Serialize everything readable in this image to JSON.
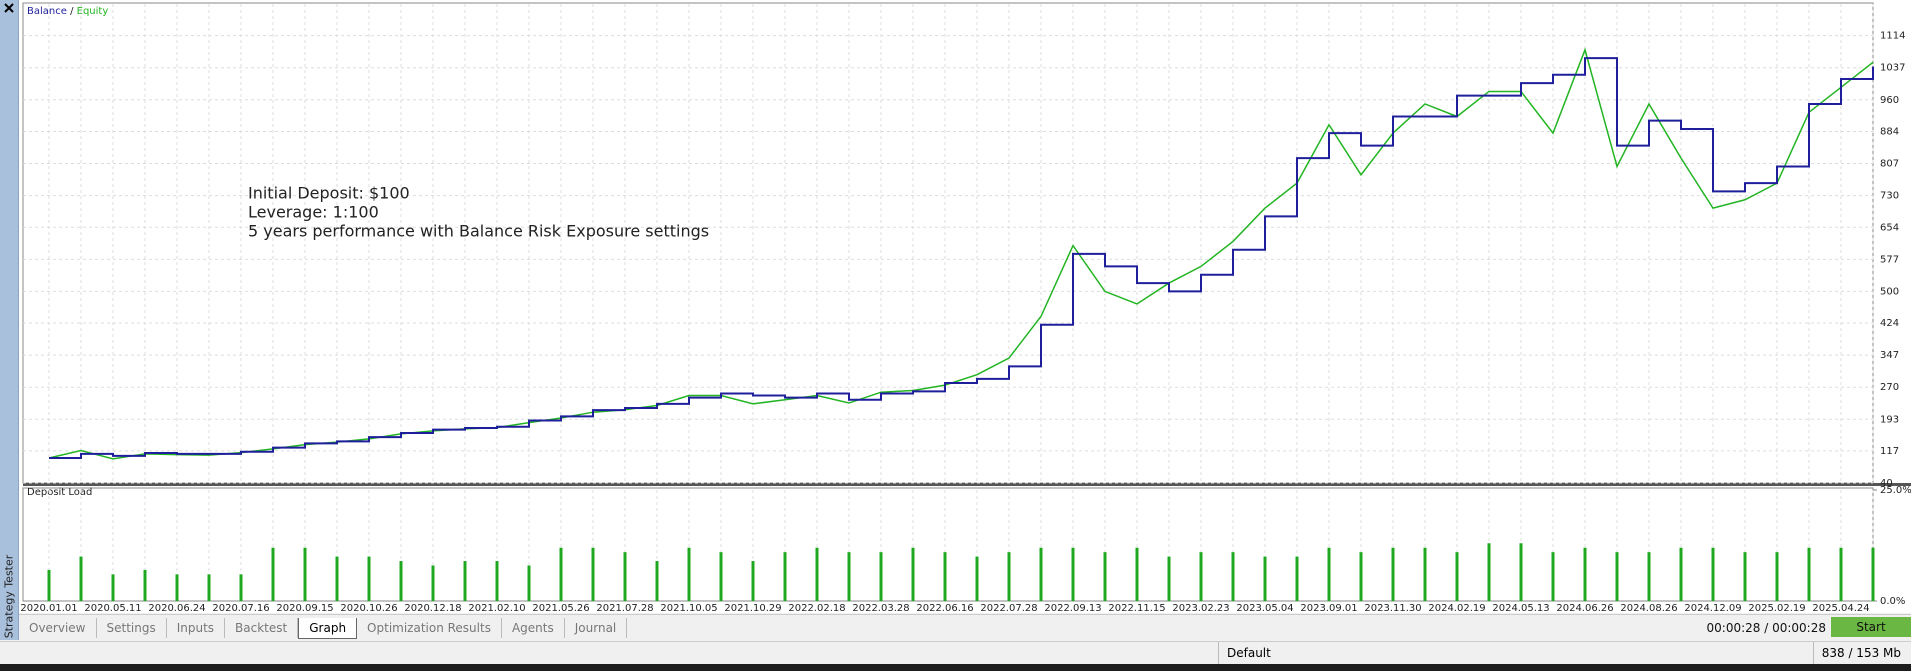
{
  "chart_data": [
    {
      "type": "line",
      "annotations": [
        "Initial Deposit: $100",
        "Leverage: 1:100",
        "5 years performance with Balance Risk Exposure settings"
      ],
      "annotation_color": "#d62a1e",
      "legend_separator": "/",
      "ylim": [
        40,
        1190
      ],
      "yticks": [
        40,
        117,
        193,
        270,
        347,
        424,
        500,
        577,
        654,
        730,
        807,
        884,
        960,
        1037,
        1114
      ],
      "grid": true,
      "series": [
        {
          "name": "Balance",
          "color": "#1f1f9c",
          "values": [
            100,
            110,
            105,
            112,
            110,
            110,
            115,
            125,
            135,
            140,
            150,
            160,
            168,
            172,
            175,
            190,
            200,
            215,
            220,
            230,
            245,
            255,
            250,
            245,
            255,
            240,
            255,
            260,
            280,
            290,
            320,
            420,
            590,
            560,
            520,
            500,
            540,
            600,
            680,
            820,
            880,
            850,
            920,
            920,
            970,
            970,
            1000,
            1020,
            1060,
            850,
            910,
            890,
            740,
            760,
            800,
            950,
            1010,
            1040
          ]
        },
        {
          "name": "Equity",
          "color": "#22b422",
          "values": [
            100,
            118,
            98,
            110,
            108,
            107,
            113,
            122,
            132,
            138,
            146,
            158,
            165,
            170,
            173,
            185,
            196,
            210,
            216,
            226,
            250,
            250,
            230,
            240,
            250,
            232,
            258,
            262,
            275,
            300,
            340,
            440,
            610,
            500,
            470,
            520,
            560,
            620,
            700,
            760,
            900,
            780,
            880,
            950,
            920,
            980,
            980,
            880,
            1080,
            800,
            950,
            820,
            700,
            720,
            760,
            930,
            990,
            1050
          ]
        }
      ]
    },
    {
      "type": "bar",
      "title": "Deposit Load",
      "color": "#1fa81f",
      "categories": [
        "2020.01.01",
        null,
        "2020.05.11",
        null,
        "2020.06.24",
        null,
        "2020.07.16",
        null,
        "2020.09.15",
        null,
        "2020.10.26",
        null,
        "2020.12.18",
        null,
        "2021.02.10",
        null,
        "2021.05.26",
        null,
        "2021.07.28",
        null,
        "2021.10.05",
        null,
        "2021.10.29",
        null,
        "2022.02.18",
        null,
        "2022.03.28",
        null,
        "2022.06.16",
        null,
        "2022.07.28",
        null,
        "2022.09.13",
        null,
        "2022.11.15",
        null,
        "2023.02.23",
        null,
        "2023.05.04",
        null,
        "2023.09.01",
        null,
        "2023.11.30",
        null,
        "2024.02.19",
        null,
        "2024.05.13",
        null,
        "2024.06.26",
        null,
        "2024.08.26",
        null,
        "2024.12.09",
        null,
        "2025.02.19",
        null,
        "2025.04.24",
        null
      ],
      "values": [
        7,
        10,
        6,
        7,
        6,
        6,
        6,
        12,
        12,
        10,
        10,
        9,
        8,
        9,
        9,
        8,
        12,
        12,
        11,
        9,
        12,
        11,
        9,
        11,
        12,
        11,
        11,
        12,
        11,
        10,
        11,
        12,
        12,
        11,
        12,
        10,
        11,
        11,
        10,
        10,
        12,
        11,
        12,
        12,
        11,
        13,
        13,
        11,
        12,
        11,
        11,
        12,
        12,
        11,
        11,
        12,
        12,
        12
      ],
      "ylim": [
        0,
        25
      ],
      "yticks": [
        {
          "value": 25,
          "label": "25.0%"
        },
        {
          "value": 0,
          "label": "0.0%"
        }
      ],
      "grid": true
    }
  ],
  "panel": {
    "side_label": "Strategy Tester",
    "tabs": [
      "Overview",
      "Settings",
      "Inputs",
      "Backtest",
      "Graph",
      "Optimization Results",
      "Agents",
      "Journal"
    ],
    "active_tab": 4,
    "timer": "00:00:28 / 00:00:28",
    "start_button": "Start",
    "status": {
      "profile": "Default",
      "memory": "838 / 153 Mb"
    }
  }
}
